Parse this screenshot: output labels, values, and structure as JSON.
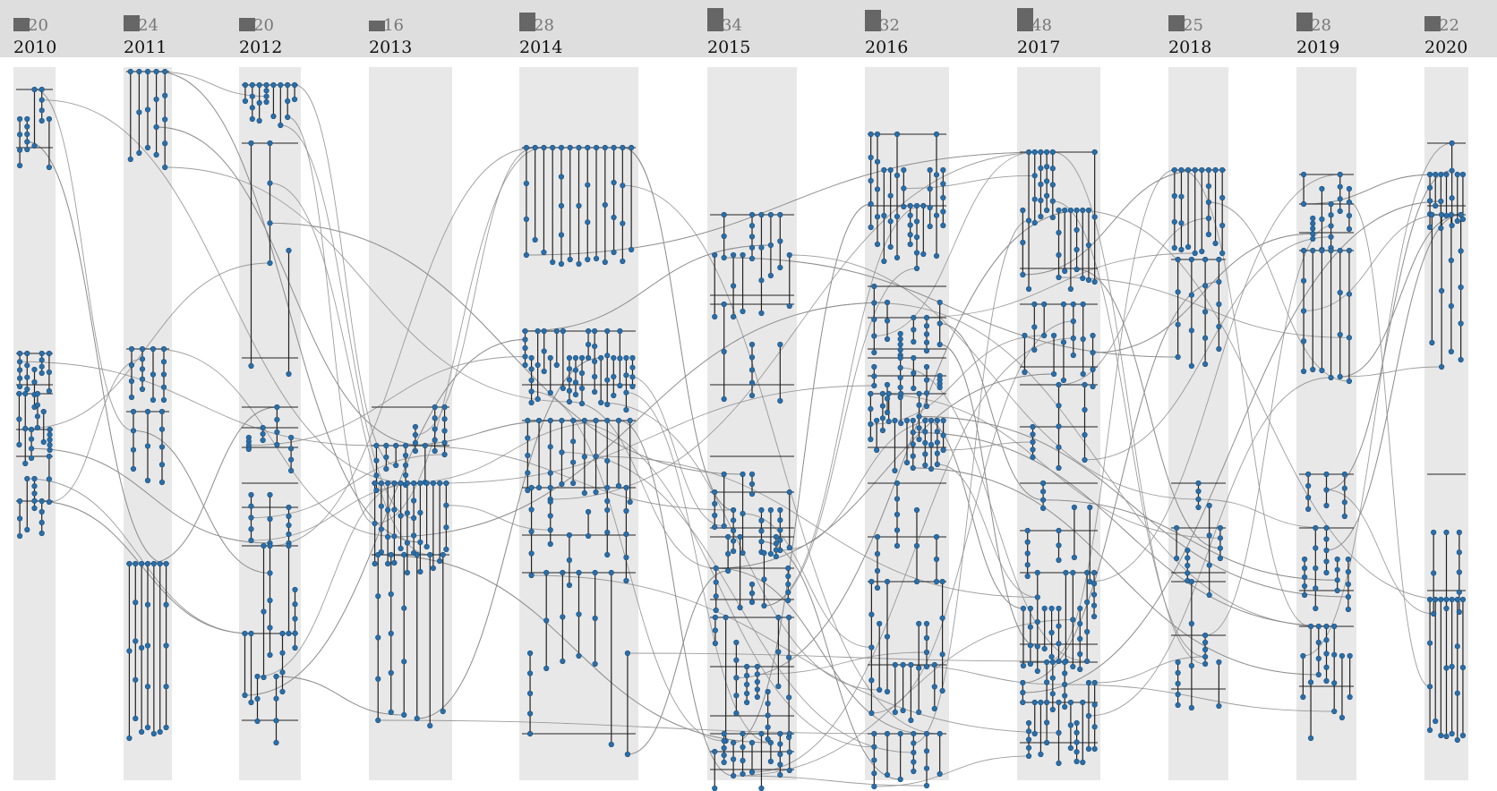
{
  "colors": {
    "header_bg": "#dedede",
    "band_fill": "#e8e8e8",
    "bar_fill": "#666666",
    "node_fill": "#2b6ea8",
    "node_stroke": "#1c4f7a",
    "vertical_edge": "#222222",
    "flow_edge": "#8c8c8c"
  },
  "header": {
    "years": [
      {
        "year": "2010",
        "count": "20"
      },
      {
        "year": "2011",
        "count": "24"
      },
      {
        "year": "2012",
        "count": "20"
      },
      {
        "year": "2013",
        "count": "16"
      },
      {
        "year": "2014",
        "count": "28"
      },
      {
        "year": "2015",
        "count": "34"
      },
      {
        "year": "2016",
        "count": "32"
      },
      {
        "year": "2017",
        "count": "48"
      },
      {
        "year": "2018",
        "count": "25"
      },
      {
        "year": "2019",
        "count": "28"
      },
      {
        "year": "2020",
        "count": "22"
      }
    ]
  }
}
